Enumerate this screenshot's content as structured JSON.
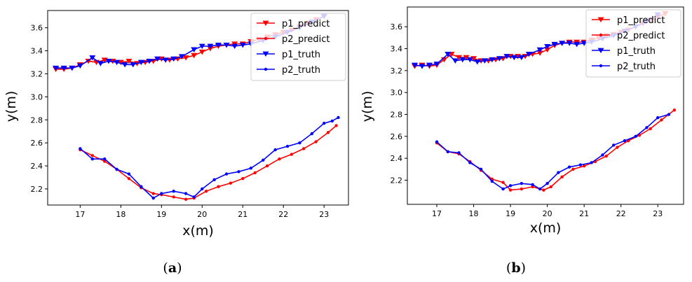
{
  "colors": {
    "predict": "#ff0000",
    "truth": "#0000ff",
    "axes": "#000000"
  },
  "captions": [
    {
      "open": "(",
      "letter": "a",
      "close": ")"
    },
    {
      "open": "(",
      "letter": "b",
      "close": ")"
    }
  ],
  "chart_data": [
    {
      "type": "line",
      "xlabel": "x(m)",
      "ylabel": "y(m)",
      "xlim": [
        16.2,
        23.6
      ],
      "ylim": [
        2.06,
        3.75
      ],
      "xticks": [
        17,
        18,
        19,
        20,
        21,
        22,
        23
      ],
      "yticks": [
        2.2,
        2.4,
        2.6,
        2.8,
        3.0,
        3.2,
        3.4,
        3.6
      ],
      "grid": false,
      "legend_position": "top-right",
      "series": [
        {
          "name": "p1_predict",
          "color": "#ff0000",
          "marker": "triangle-down",
          "x": [
            16.4,
            16.6,
            16.8,
            17.0,
            17.2,
            17.4,
            17.6,
            17.8,
            18.0,
            18.2,
            18.4,
            18.6,
            18.8,
            19.0,
            19.2,
            19.4,
            19.6,
            19.8,
            20.0,
            20.2,
            20.4,
            20.6,
            20.8,
            21.0,
            21.2,
            21.4,
            21.6,
            21.8,
            22.0,
            22.2,
            22.4,
            22.6,
            22.8,
            23.0
          ],
          "y": [
            3.24,
            3.24,
            3.25,
            3.28,
            3.31,
            3.3,
            3.32,
            3.31,
            3.3,
            3.31,
            3.29,
            3.3,
            3.31,
            3.33,
            3.32,
            3.33,
            3.34,
            3.36,
            3.39,
            3.42,
            3.44,
            3.45,
            3.46,
            3.46,
            3.48,
            3.5,
            3.52,
            3.54,
            3.56,
            3.58,
            3.61,
            3.64,
            3.67,
            3.7
          ]
        },
        {
          "name": "p2_predict",
          "color": "#ff0000",
          "marker": "dot",
          "x": [
            17.0,
            17.3,
            17.6,
            17.9,
            18.2,
            18.5,
            18.8,
            19.0,
            19.3,
            19.6,
            19.8,
            20.1,
            20.4,
            20.7,
            21.0,
            21.3,
            21.6,
            21.9,
            22.2,
            22.5,
            22.8,
            23.1,
            23.3
          ],
          "y": [
            2.54,
            2.49,
            2.44,
            2.37,
            2.29,
            2.21,
            2.16,
            2.15,
            2.13,
            2.11,
            2.12,
            2.18,
            2.22,
            2.25,
            2.29,
            2.34,
            2.4,
            2.46,
            2.5,
            2.55,
            2.61,
            2.69,
            2.75
          ]
        },
        {
          "name": "p1_truth",
          "color": "#0000ff",
          "marker": "triangle-down",
          "x": [
            16.4,
            16.6,
            16.8,
            17.0,
            17.3,
            17.5,
            17.7,
            17.9,
            18.1,
            18.3,
            18.5,
            18.7,
            18.9,
            19.1,
            19.3,
            19.5,
            19.8,
            20.0,
            20.2,
            20.4,
            20.6,
            20.8,
            21.0,
            21.2,
            21.5,
            21.8,
            22.1,
            22.4,
            22.7,
            23.0
          ],
          "y": [
            3.25,
            3.25,
            3.25,
            3.27,
            3.34,
            3.29,
            3.31,
            3.3,
            3.28,
            3.28,
            3.3,
            3.31,
            3.33,
            3.32,
            3.33,
            3.35,
            3.41,
            3.44,
            3.44,
            3.45,
            3.45,
            3.44,
            3.45,
            3.46,
            3.49,
            3.52,
            3.56,
            3.6,
            3.65,
            3.7
          ]
        },
        {
          "name": "p2_truth",
          "color": "#0000ff",
          "marker": "dot",
          "x": [
            17.0,
            17.3,
            17.6,
            17.9,
            18.2,
            18.5,
            18.8,
            19.0,
            19.3,
            19.6,
            19.8,
            20.0,
            20.3,
            20.6,
            20.9,
            21.2,
            21.5,
            21.8,
            22.1,
            22.4,
            22.7,
            23.0,
            23.2,
            23.35
          ],
          "y": [
            2.55,
            2.46,
            2.46,
            2.37,
            2.33,
            2.22,
            2.12,
            2.16,
            2.18,
            2.16,
            2.13,
            2.2,
            2.28,
            2.33,
            2.35,
            2.38,
            2.45,
            2.54,
            2.57,
            2.6,
            2.68,
            2.77,
            2.79,
            2.82
          ]
        }
      ]
    },
    {
      "type": "line",
      "xlabel": "x(m)",
      "ylabel": "y(m)",
      "xlim": [
        16.2,
        23.7
      ],
      "ylim": [
        1.98,
        3.78
      ],
      "xticks": [
        17,
        18,
        19,
        20,
        21,
        22,
        23
      ],
      "yticks": [
        2.2,
        2.4,
        2.6,
        2.8,
        3.0,
        3.2,
        3.4,
        3.6
      ],
      "grid": false,
      "legend_position": "top-right",
      "series": [
        {
          "name": "p1_predict",
          "color": "#ff0000",
          "marker": "triangle-down",
          "x": [
            16.4,
            16.6,
            16.8,
            17.0,
            17.2,
            17.4,
            17.6,
            17.8,
            18.0,
            18.2,
            18.4,
            18.6,
            18.8,
            19.0,
            19.2,
            19.4,
            19.6,
            19.8,
            20.0,
            20.2,
            20.4,
            20.6,
            20.8,
            21.0,
            21.2,
            21.4,
            21.6,
            21.8,
            22.0,
            22.2,
            22.4,
            22.6,
            22.8,
            23.0,
            23.2
          ],
          "y": [
            3.24,
            3.25,
            3.24,
            3.25,
            3.3,
            3.35,
            3.32,
            3.32,
            3.31,
            3.29,
            3.29,
            3.3,
            3.31,
            3.33,
            3.33,
            3.33,
            3.35,
            3.36,
            3.39,
            3.43,
            3.45,
            3.46,
            3.46,
            3.46,
            3.48,
            3.5,
            3.52,
            3.53,
            3.55,
            3.57,
            3.6,
            3.63,
            3.66,
            3.69,
            3.72
          ]
        },
        {
          "name": "p2_predict",
          "color": "#ff0000",
          "marker": "dot",
          "x": [
            17.0,
            17.3,
            17.6,
            17.9,
            18.2,
            18.5,
            18.8,
            19.0,
            19.3,
            19.6,
            19.9,
            20.1,
            20.4,
            20.7,
            21.0,
            21.3,
            21.6,
            21.9,
            22.2,
            22.5,
            22.8,
            23.1,
            23.45
          ],
          "y": [
            2.54,
            2.46,
            2.44,
            2.37,
            2.29,
            2.21,
            2.18,
            2.11,
            2.12,
            2.14,
            2.11,
            2.14,
            2.23,
            2.3,
            2.33,
            2.37,
            2.42,
            2.5,
            2.56,
            2.61,
            2.67,
            2.75,
            2.84
          ]
        },
        {
          "name": "p1_truth",
          "color": "#0000ff",
          "marker": "triangle-down",
          "x": [
            16.4,
            16.6,
            16.8,
            17.0,
            17.3,
            17.5,
            17.7,
            17.9,
            18.1,
            18.3,
            18.5,
            18.7,
            18.9,
            19.1,
            19.3,
            19.5,
            19.8,
            20.0,
            20.2,
            20.4,
            20.6,
            20.8,
            21.0,
            21.2,
            21.5,
            21.8,
            22.1,
            22.4,
            22.7,
            23.0
          ],
          "y": [
            3.25,
            3.24,
            3.25,
            3.26,
            3.35,
            3.29,
            3.3,
            3.3,
            3.28,
            3.29,
            3.3,
            3.31,
            3.33,
            3.32,
            3.32,
            3.35,
            3.39,
            3.42,
            3.44,
            3.45,
            3.45,
            3.44,
            3.45,
            3.46,
            3.49,
            3.52,
            3.56,
            3.6,
            3.65,
            3.71
          ]
        },
        {
          "name": "p2_truth",
          "color": "#0000ff",
          "marker": "dot",
          "x": [
            17.0,
            17.3,
            17.6,
            17.9,
            18.2,
            18.5,
            18.8,
            19.0,
            19.3,
            19.6,
            19.8,
            20.0,
            20.3,
            20.6,
            20.9,
            21.2,
            21.5,
            21.8,
            22.1,
            22.4,
            22.7,
            23.0,
            23.3
          ],
          "y": [
            2.55,
            2.46,
            2.45,
            2.36,
            2.3,
            2.19,
            2.12,
            2.15,
            2.17,
            2.16,
            2.12,
            2.17,
            2.27,
            2.32,
            2.34,
            2.36,
            2.43,
            2.52,
            2.56,
            2.6,
            2.68,
            2.77,
            2.8
          ]
        }
      ]
    }
  ]
}
